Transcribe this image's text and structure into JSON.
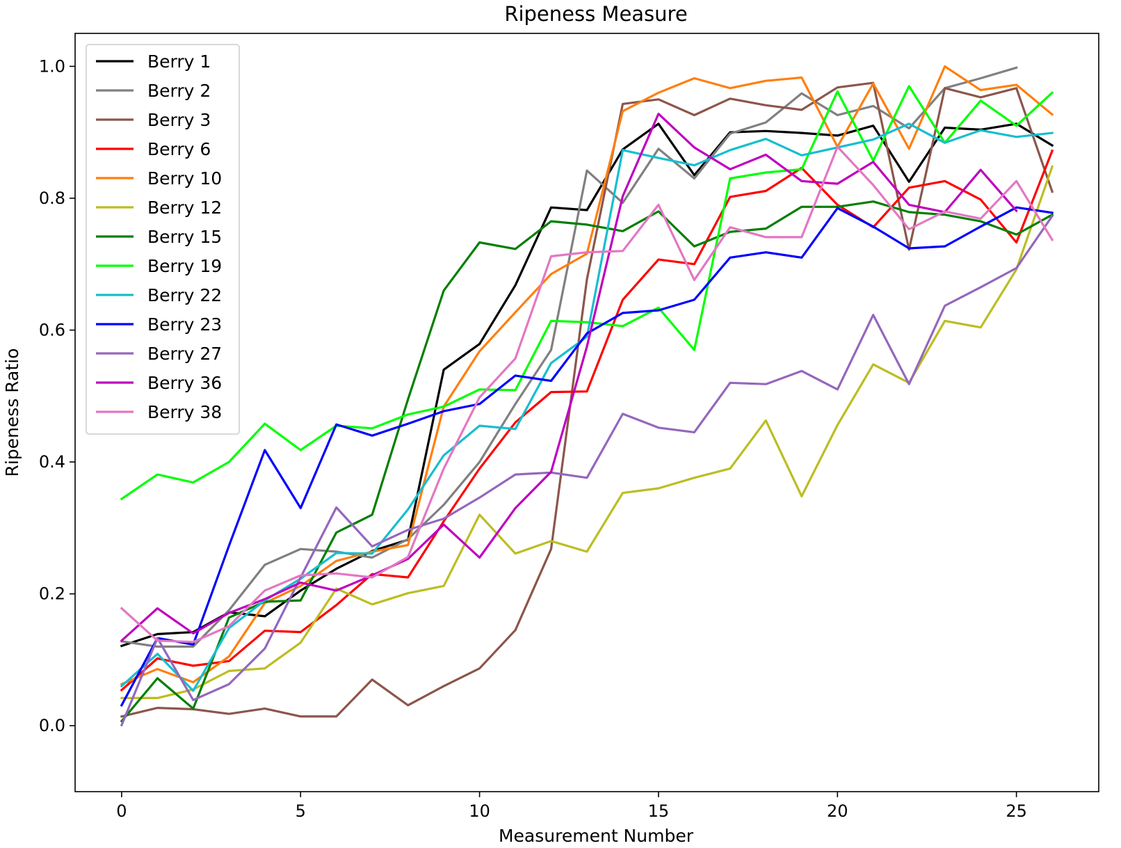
{
  "chart_data": {
    "type": "line",
    "title": "Ripeness Measure",
    "xlabel": "Measurement Number",
    "ylabel": "Ripeness Ratio",
    "xlim": [
      -1.3,
      27.3
    ],
    "ylim": [
      -0.1,
      1.05
    ],
    "xticks": [
      0,
      5,
      10,
      15,
      20,
      25
    ],
    "yticks": [
      0.0,
      0.2,
      0.4,
      0.6,
      0.8,
      1.0
    ],
    "xtick_labels": [
      "0",
      "5",
      "10",
      "15",
      "20",
      "25"
    ],
    "ytick_labels": [
      "0.0",
      "0.2",
      "0.4",
      "0.6",
      "0.8",
      "1.0"
    ],
    "grid": false,
    "legend_position": "top-left",
    "series": [
      {
        "name": "Berry 1",
        "color": "#000000",
        "values": [
          0.121,
          0.139,
          0.142,
          0.172,
          0.166,
          0.205,
          0.238,
          0.265,
          0.282,
          0.54,
          0.579,
          0.668,
          0.786,
          0.782,
          0.874,
          0.913,
          0.835,
          0.9,
          0.902,
          0.899,
          0.895,
          0.91,
          0.825,
          0.907,
          0.904,
          0.913,
          0.88
        ]
      },
      {
        "name": "Berry 2",
        "color": "#808080",
        "values": [
          0.128,
          0.12,
          0.12,
          0.175,
          0.244,
          0.268,
          0.264,
          0.255,
          0.283,
          0.335,
          0.4,
          0.488,
          0.57,
          0.842,
          0.793,
          0.875,
          0.83,
          0.898,
          0.915,
          0.959,
          0.926,
          0.94,
          0.906,
          0.967,
          0.982,
          0.998
        ]
      },
      {
        "name": "Berry 3",
        "color": "#8c564b",
        "values": [
          0.014,
          0.027,
          0.025,
          0.018,
          0.026,
          0.014,
          0.014,
          0.07,
          0.031,
          0.06,
          0.087,
          0.145,
          0.268,
          0.677,
          0.943,
          0.95,
          0.926,
          0.951,
          0.941,
          0.934,
          0.968,
          0.975,
          0.722,
          0.967,
          0.953,
          0.967,
          0.81
        ]
      },
      {
        "name": "Berry 6",
        "color": "#ff0000",
        "values": [
          0.054,
          0.102,
          0.091,
          0.098,
          0.144,
          0.142,
          0.183,
          0.23,
          0.225,
          0.31,
          0.39,
          0.46,
          0.506,
          0.507,
          0.646,
          0.707,
          0.7,
          0.802,
          0.811,
          0.846,
          0.79,
          0.756,
          0.816,
          0.826,
          0.798,
          0.733,
          0.872
        ]
      },
      {
        "name": "Berry 10",
        "color": "#ff7f0e",
        "values": [
          0.063,
          0.086,
          0.066,
          0.105,
          0.186,
          0.212,
          0.25,
          0.264,
          0.274,
          0.484,
          0.568,
          0.627,
          0.685,
          0.716,
          0.932,
          0.96,
          0.982,
          0.967,
          0.978,
          0.983,
          0.878,
          0.974,
          0.875,
          1.0,
          0.964,
          0.972,
          0.927
        ]
      },
      {
        "name": "Berry 12",
        "color": "#bcbd22",
        "values": [
          0.042,
          0.042,
          0.055,
          0.083,
          0.087,
          0.126,
          0.208,
          0.184,
          0.201,
          0.212,
          0.32,
          0.261,
          0.28,
          0.264,
          0.353,
          0.36,
          0.376,
          0.39,
          0.463,
          0.348,
          0.456,
          0.548,
          0.52,
          0.614,
          0.604,
          0.692,
          0.848
        ]
      },
      {
        "name": "Berry 15",
        "color": "#007f00",
        "values": [
          0.007,
          0.072,
          0.026,
          0.164,
          0.188,
          0.19,
          0.293,
          0.32,
          0.495,
          0.66,
          0.733,
          0.723,
          0.765,
          0.76,
          0.75,
          0.78,
          0.727,
          0.749,
          0.754,
          0.787,
          0.787,
          0.795,
          0.779,
          0.775,
          0.765,
          0.745,
          0.775
        ]
      },
      {
        "name": "Berry 19",
        "color": "#00ff00",
        "values": [
          0.344,
          0.381,
          0.369,
          0.4,
          0.458,
          0.418,
          0.455,
          0.451,
          0.472,
          0.484,
          0.51,
          0.509,
          0.614,
          0.612,
          0.606,
          0.634,
          0.57,
          0.83,
          0.839,
          0.844,
          0.962,
          0.857,
          0.97,
          0.884,
          0.948,
          0.91,
          0.96
        ]
      },
      {
        "name": "Berry 22",
        "color": "#17becf",
        "values": [
          0.06,
          0.109,
          0.053,
          0.148,
          0.19,
          0.223,
          0.262,
          0.261,
          0.328,
          0.41,
          0.455,
          0.45,
          0.55,
          0.59,
          0.873,
          0.861,
          0.85,
          0.873,
          0.89,
          0.865,
          0.877,
          0.889,
          0.913,
          0.884,
          0.903,
          0.893,
          0.899
        ]
      },
      {
        "name": "Berry 23",
        "color": "#0000ff",
        "values": [
          0.031,
          0.133,
          0.123,
          0.273,
          0.418,
          0.33,
          0.457,
          0.44,
          0.458,
          0.477,
          0.488,
          0.531,
          0.523,
          0.595,
          0.626,
          0.63,
          0.646,
          0.71,
          0.718,
          0.71,
          0.785,
          0.757,
          0.724,
          0.727,
          0.757,
          0.786,
          0.778
        ]
      },
      {
        "name": "Berry 27",
        "color": "#9467bd",
        "values": [
          0.001,
          0.133,
          0.039,
          0.063,
          0.117,
          0.225,
          0.331,
          0.272,
          0.297,
          0.314,
          0.346,
          0.381,
          0.384,
          0.376,
          0.473,
          0.452,
          0.445,
          0.52,
          0.518,
          0.538,
          0.51,
          0.623,
          0.518,
          0.637,
          0.665,
          0.694,
          0.773
        ]
      },
      {
        "name": "Berry 36",
        "color": "#bf00bf",
        "values": [
          0.129,
          0.178,
          0.14,
          0.171,
          0.192,
          0.217,
          0.205,
          0.228,
          0.253,
          0.305,
          0.255,
          0.33,
          0.385,
          0.575,
          0.803,
          0.928,
          0.877,
          0.844,
          0.866,
          0.826,
          0.822,
          0.855,
          0.79,
          0.779,
          0.843,
          0.781
        ]
      },
      {
        "name": "Berry 38",
        "color": "#e377c2",
        "values": [
          0.178,
          0.129,
          0.127,
          0.151,
          0.205,
          0.228,
          0.231,
          0.225,
          0.256,
          0.39,
          0.498,
          0.557,
          0.712,
          0.718,
          0.72,
          0.79,
          0.676,
          0.756,
          0.741,
          0.741,
          0.878,
          0.82,
          0.753,
          0.78,
          0.769,
          0.826,
          0.737
        ]
      }
    ]
  }
}
